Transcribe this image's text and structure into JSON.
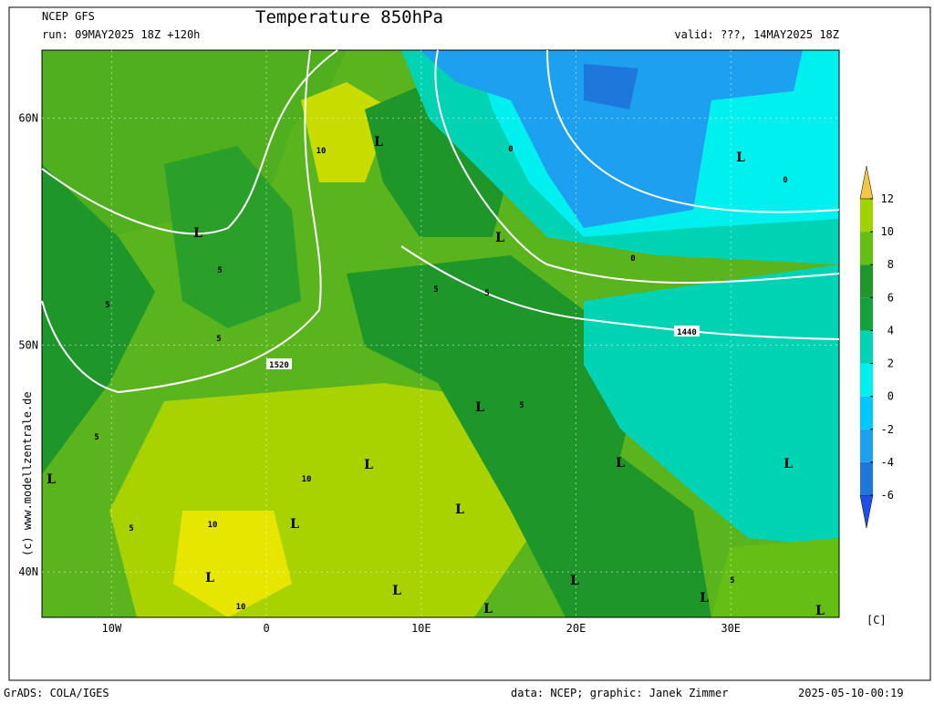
{
  "header": {
    "model": "NCEP GFS",
    "run": "run: 09MAY2025 18Z +120h",
    "title": "Temperature 850hPa",
    "valid": "valid: ???, 14MAY2025 18Z"
  },
  "copyright": "(c) www.modellzentrale.de",
  "map": {
    "lon_range": [
      -14.5,
      37
    ],
    "lat_range": [
      38,
      63
    ],
    "lon_ticks": [
      {
        "value": -10,
        "label": "10W"
      },
      {
        "value": 0,
        "label": "0"
      },
      {
        "value": 10,
        "label": "10E"
      },
      {
        "value": 20,
        "label": "20E"
      },
      {
        "value": 30,
        "label": "30E"
      }
    ],
    "lat_ticks": [
      {
        "value": 60,
        "label": "60N"
      },
      {
        "value": 50,
        "label": "50N"
      },
      {
        "value": 40,
        "label": "40N"
      }
    ],
    "contour_labels": [
      "1520",
      "1440",
      "10",
      "10",
      "10",
      "10",
      "5",
      "5",
      "5",
      "5",
      "5",
      "5",
      "5",
      "5",
      "5",
      "0",
      "0",
      "0"
    ],
    "lows": [
      "L",
      "L",
      "L",
      "L",
      "L",
      "L",
      "L",
      "L",
      "L",
      "L",
      "L",
      "L",
      "L",
      "L",
      "L",
      "L",
      "L"
    ]
  },
  "colorbar": {
    "ticks": [
      -6,
      -4,
      -2,
      0,
      2,
      4,
      6,
      8,
      10,
      12
    ],
    "unit": "[C]",
    "colors": [
      "#1e50e6",
      "#1e78dc",
      "#1ea0f0",
      "#00c8ff",
      "#00f0f0",
      "#00d2b4",
      "#14a03c",
      "#1e962a",
      "#64be14",
      "#a0d200",
      "#e6e600",
      "#f0c846"
    ]
  },
  "footer": {
    "left": "GrADS: COLA/IGES",
    "center": "data: NCEP; graphic: Janek Zimmer",
    "right": "2025-05-10-00:19"
  }
}
